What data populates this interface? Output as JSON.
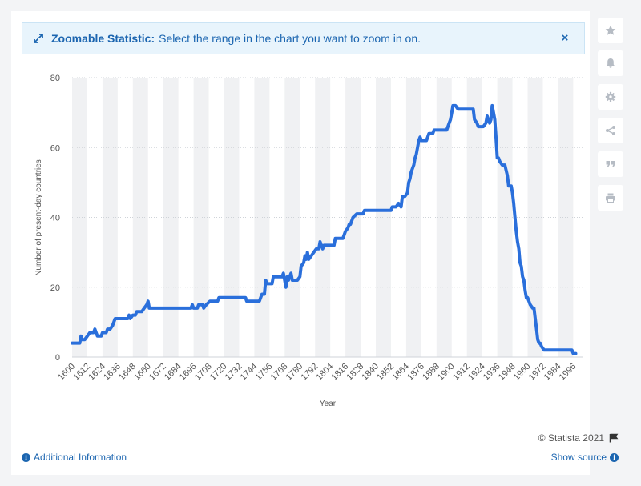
{
  "banner": {
    "title": "Zoomable Statistic:",
    "text": "Select the range in the chart you want to zoom in on.",
    "close_label": "×"
  },
  "sidebar": {
    "buttons": [
      {
        "name": "favorite-button",
        "icon": "star-icon"
      },
      {
        "name": "notification-button",
        "icon": "bell-icon"
      },
      {
        "name": "settings-button",
        "icon": "gear-icon"
      },
      {
        "name": "share-button",
        "icon": "share-icon"
      },
      {
        "name": "cite-button",
        "icon": "quote-icon"
      },
      {
        "name": "print-button",
        "icon": "printer-icon"
      }
    ]
  },
  "footer": {
    "copyright": "© Statista 2021",
    "additional_info": "Additional Information",
    "show_source": "Show source"
  },
  "colors": {
    "line": "#2a6fdb",
    "accent": "#1b65b0",
    "band": "#f0f1f3"
  },
  "chart_data": {
    "type": "line",
    "title": "",
    "xlabel": "Year",
    "ylabel": "Number of present-day countries",
    "xlim": [
      1600,
      2004
    ],
    "ylim": [
      0,
      80
    ],
    "yticks": [
      0,
      20,
      40,
      60,
      80
    ],
    "xticks": [
      1600,
      1612,
      1624,
      1636,
      1648,
      1660,
      1672,
      1684,
      1696,
      1708,
      1720,
      1732,
      1744,
      1756,
      1768,
      1780,
      1792,
      1804,
      1816,
      1828,
      1840,
      1852,
      1864,
      1876,
      1888,
      1900,
      1912,
      1924,
      1936,
      1948,
      1960,
      1972,
      1984,
      1996
    ],
    "grid": true,
    "series": [
      {
        "values": [
          [
            1600,
            4
          ],
          [
            1606,
            4
          ],
          [
            1607,
            6
          ],
          [
            1608,
            5
          ],
          [
            1610,
            5
          ],
          [
            1612,
            6
          ],
          [
            1614,
            7
          ],
          [
            1617,
            7
          ],
          [
            1618,
            8
          ],
          [
            1619,
            7
          ],
          [
            1620,
            6
          ],
          [
            1623,
            6
          ],
          [
            1624,
            7
          ],
          [
            1627,
            7
          ],
          [
            1628,
            8
          ],
          [
            1630,
            8
          ],
          [
            1632,
            9
          ],
          [
            1634,
            11
          ],
          [
            1644,
            11
          ],
          [
            1645,
            12
          ],
          [
            1646,
            11
          ],
          [
            1648,
            12
          ],
          [
            1650,
            12
          ],
          [
            1651,
            13
          ],
          [
            1655,
            13
          ],
          [
            1657,
            14
          ],
          [
            1659,
            15
          ],
          [
            1660,
            16
          ],
          [
            1661,
            14
          ],
          [
            1694,
            14
          ],
          [
            1695,
            15
          ],
          [
            1696,
            14
          ],
          [
            1699,
            14
          ],
          [
            1700,
            15
          ],
          [
            1703,
            15
          ],
          [
            1704,
            14
          ],
          [
            1706,
            15
          ],
          [
            1709,
            16
          ],
          [
            1715,
            16
          ],
          [
            1716,
            17
          ],
          [
            1737,
            17
          ],
          [
            1738,
            16
          ],
          [
            1748,
            16
          ],
          [
            1750,
            18
          ],
          [
            1752,
            18
          ],
          [
            1753,
            22
          ],
          [
            1754,
            21
          ],
          [
            1758,
            21
          ],
          [
            1759,
            23
          ],
          [
            1766,
            23
          ],
          [
            1767,
            24
          ],
          [
            1768,
            22
          ],
          [
            1769,
            20
          ],
          [
            1770,
            23
          ],
          [
            1771,
            22
          ],
          [
            1773,
            24
          ],
          [
            1774,
            22
          ],
          [
            1778,
            22
          ],
          [
            1780,
            23
          ],
          [
            1781,
            26
          ],
          [
            1783,
            27
          ],
          [
            1784,
            29
          ],
          [
            1785,
            28
          ],
          [
            1786,
            30
          ],
          [
            1787,
            28
          ],
          [
            1789,
            29
          ],
          [
            1791,
            30
          ],
          [
            1793,
            31
          ],
          [
            1795,
            31
          ],
          [
            1796,
            33
          ],
          [
            1797,
            32
          ],
          [
            1798,
            31
          ],
          [
            1799,
            32
          ],
          [
            1807,
            32
          ],
          [
            1808,
            34
          ],
          [
            1814,
            34
          ],
          [
            1816,
            36
          ],
          [
            1818,
            37
          ],
          [
            1819,
            38
          ],
          [
            1820,
            38
          ],
          [
            1822,
            40
          ],
          [
            1825,
            41
          ],
          [
            1830,
            41
          ],
          [
            1831,
            42
          ],
          [
            1852,
            42
          ],
          [
            1853,
            43
          ],
          [
            1856,
            43
          ],
          [
            1858,
            44
          ],
          [
            1860,
            43
          ],
          [
            1861,
            46
          ],
          [
            1863,
            46
          ],
          [
            1865,
            47
          ],
          [
            1866,
            50
          ],
          [
            1867,
            51
          ],
          [
            1868,
            53
          ],
          [
            1869,
            54
          ],
          [
            1870,
            55
          ],
          [
            1871,
            57
          ],
          [
            1872,
            58
          ],
          [
            1873,
            60
          ],
          [
            1874,
            62
          ],
          [
            1875,
            63
          ],
          [
            1876,
            62
          ],
          [
            1880,
            62
          ],
          [
            1881,
            63
          ],
          [
            1882,
            64
          ],
          [
            1885,
            64
          ],
          [
            1886,
            65
          ],
          [
            1896,
            65
          ],
          [
            1897,
            66
          ],
          [
            1898,
            67
          ],
          [
            1899,
            68
          ],
          [
            1900,
            70
          ],
          [
            1901,
            72
          ],
          [
            1903,
            72
          ],
          [
            1905,
            71
          ],
          [
            1917,
            71
          ],
          [
            1918,
            68
          ],
          [
            1920,
            67
          ],
          [
            1921,
            66
          ],
          [
            1925,
            66
          ],
          [
            1927,
            67
          ],
          [
            1928,
            69
          ],
          [
            1929,
            68
          ],
          [
            1930,
            67
          ],
          [
            1931,
            68
          ],
          [
            1932,
            72
          ],
          [
            1933,
            70
          ],
          [
            1934,
            68
          ],
          [
            1935,
            63
          ],
          [
            1936,
            57
          ],
          [
            1937,
            57
          ],
          [
            1938,
            56
          ],
          [
            1940,
            55
          ],
          [
            1942,
            55
          ],
          [
            1944,
            52
          ],
          [
            1945,
            49
          ],
          [
            1947,
            49
          ],
          [
            1948,
            47
          ],
          [
            1949,
            44
          ],
          [
            1950,
            40
          ],
          [
            1951,
            36
          ],
          [
            1952,
            33
          ],
          [
            1953,
            31
          ],
          [
            1954,
            27
          ],
          [
            1955,
            26
          ],
          [
            1956,
            23
          ],
          [
            1957,
            22
          ],
          [
            1958,
            19
          ],
          [
            1959,
            17
          ],
          [
            1960,
            17
          ],
          [
            1961,
            16
          ],
          [
            1962,
            15
          ],
          [
            1964,
            14
          ],
          [
            1965,
            14
          ],
          [
            1966,
            11
          ],
          [
            1967,
            8
          ],
          [
            1968,
            5
          ],
          [
            1969,
            4
          ],
          [
            1970,
            4
          ],
          [
            1971,
            3
          ],
          [
            1973,
            2
          ],
          [
            1995,
            2
          ],
          [
            1996,
            1
          ],
          [
            1998,
            1
          ]
        ]
      }
    ]
  }
}
